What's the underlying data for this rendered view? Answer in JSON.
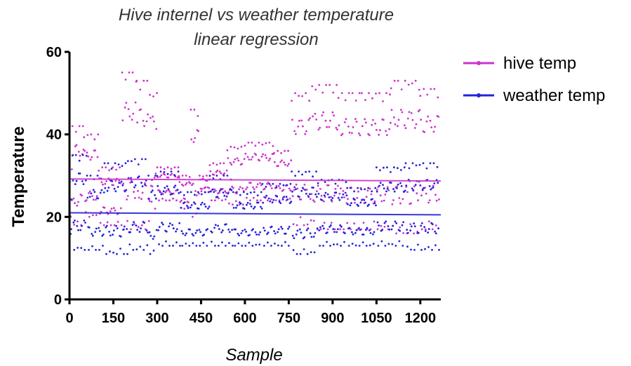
{
  "chart_data": {
    "type": "scatter",
    "title": [
      "Hive internel vs weather temperature",
      "linear regression"
    ],
    "xlabel": "Sample",
    "ylabel": "Temperature",
    "xlim": [
      0,
      1270
    ],
    "ylim": [
      0,
      60
    ],
    "xticks": [
      0,
      150,
      300,
      450,
      600,
      750,
      900,
      1050,
      1200
    ],
    "yticks": [
      0,
      20,
      40,
      60
    ],
    "grid": false,
    "legend_position": "top-right",
    "series": [
      {
        "name": "hive temp",
        "color": "#cc33cc",
        "point_spacing": 2,
        "regression": {
          "x": [
            0,
            1270
          ],
          "y": [
            29.2,
            28.7
          ]
        },
        "segments": [
          {
            "start": 0,
            "end": 10,
            "min": 20,
            "max": 34,
            "period": 9
          },
          {
            "start": 10,
            "end": 50,
            "min": 18,
            "max": 42,
            "period": 12
          },
          {
            "start": 50,
            "end": 100,
            "min": 20,
            "max": 40,
            "period": 12
          },
          {
            "start": 100,
            "end": 180,
            "min": 18,
            "max": 32,
            "period": 12
          },
          {
            "start": 180,
            "end": 230,
            "min": 17,
            "max": 55,
            "period": 12
          },
          {
            "start": 230,
            "end": 275,
            "min": 17,
            "max": 53,
            "period": 12
          },
          {
            "start": 275,
            "end": 300,
            "min": 22,
            "max": 50,
            "period": 12
          },
          {
            "start": 300,
            "end": 375,
            "min": 24,
            "max": 32,
            "period": 12
          },
          {
            "start": 375,
            "end": 415,
            "min": 22,
            "max": 30,
            "period": 12
          },
          {
            "start": 415,
            "end": 445,
            "min": 20,
            "max": 46,
            "period": 12
          },
          {
            "start": 445,
            "end": 480,
            "min": 26,
            "max": 30,
            "period": 12
          },
          {
            "start": 480,
            "end": 540,
            "min": 24,
            "max": 33,
            "period": 12
          },
          {
            "start": 540,
            "end": 600,
            "min": 23,
            "max": 37,
            "period": 12
          },
          {
            "start": 600,
            "end": 700,
            "min": 24,
            "max": 38,
            "period": 12
          },
          {
            "start": 700,
            "end": 760,
            "min": 24,
            "max": 36,
            "period": 12
          },
          {
            "start": 760,
            "end": 830,
            "min": 18,
            "max": 50,
            "period": 12
          },
          {
            "start": 830,
            "end": 920,
            "min": 17,
            "max": 52,
            "period": 12
          },
          {
            "start": 920,
            "end": 1000,
            "min": 17,
            "max": 50,
            "period": 12
          },
          {
            "start": 1000,
            "end": 1100,
            "min": 17,
            "max": 50,
            "period": 12
          },
          {
            "start": 1100,
            "end": 1200,
            "min": 16,
            "max": 53,
            "period": 12
          },
          {
            "start": 1200,
            "end": 1265,
            "min": 17,
            "max": 51,
            "period": 12
          }
        ]
      },
      {
        "name": "weather temp",
        "color": "#2222dd",
        "point_spacing": 2,
        "regression": {
          "x": [
            0,
            1270
          ],
          "y": [
            21.0,
            20.5
          ]
        },
        "segments": [
          {
            "start": 0,
            "end": 10,
            "min": 15,
            "max": 25,
            "period": 9
          },
          {
            "start": 10,
            "end": 60,
            "min": 12,
            "max": 35,
            "period": 12
          },
          {
            "start": 60,
            "end": 120,
            "min": 12,
            "max": 30,
            "period": 12
          },
          {
            "start": 120,
            "end": 200,
            "min": 11,
            "max": 33,
            "period": 12
          },
          {
            "start": 200,
            "end": 270,
            "min": 12,
            "max": 34,
            "period": 12
          },
          {
            "start": 270,
            "end": 300,
            "min": 11,
            "max": 30,
            "period": 12
          },
          {
            "start": 300,
            "end": 380,
            "min": 13,
            "max": 31,
            "period": 12
          },
          {
            "start": 380,
            "end": 480,
            "min": 13,
            "max": 26,
            "period": 12
          },
          {
            "start": 480,
            "end": 560,
            "min": 13,
            "max": 30,
            "period": 12
          },
          {
            "start": 560,
            "end": 660,
            "min": 13,
            "max": 26,
            "period": 12
          },
          {
            "start": 660,
            "end": 760,
            "min": 13,
            "max": 28,
            "period": 12
          },
          {
            "start": 760,
            "end": 850,
            "min": 11,
            "max": 31,
            "period": 12
          },
          {
            "start": 850,
            "end": 950,
            "min": 13,
            "max": 29,
            "period": 12
          },
          {
            "start": 950,
            "end": 1050,
            "min": 13,
            "max": 27,
            "period": 12
          },
          {
            "start": 1050,
            "end": 1150,
            "min": 13,
            "max": 32,
            "period": 12
          },
          {
            "start": 1150,
            "end": 1265,
            "min": 12,
            "max": 33,
            "period": 12
          }
        ]
      }
    ]
  }
}
